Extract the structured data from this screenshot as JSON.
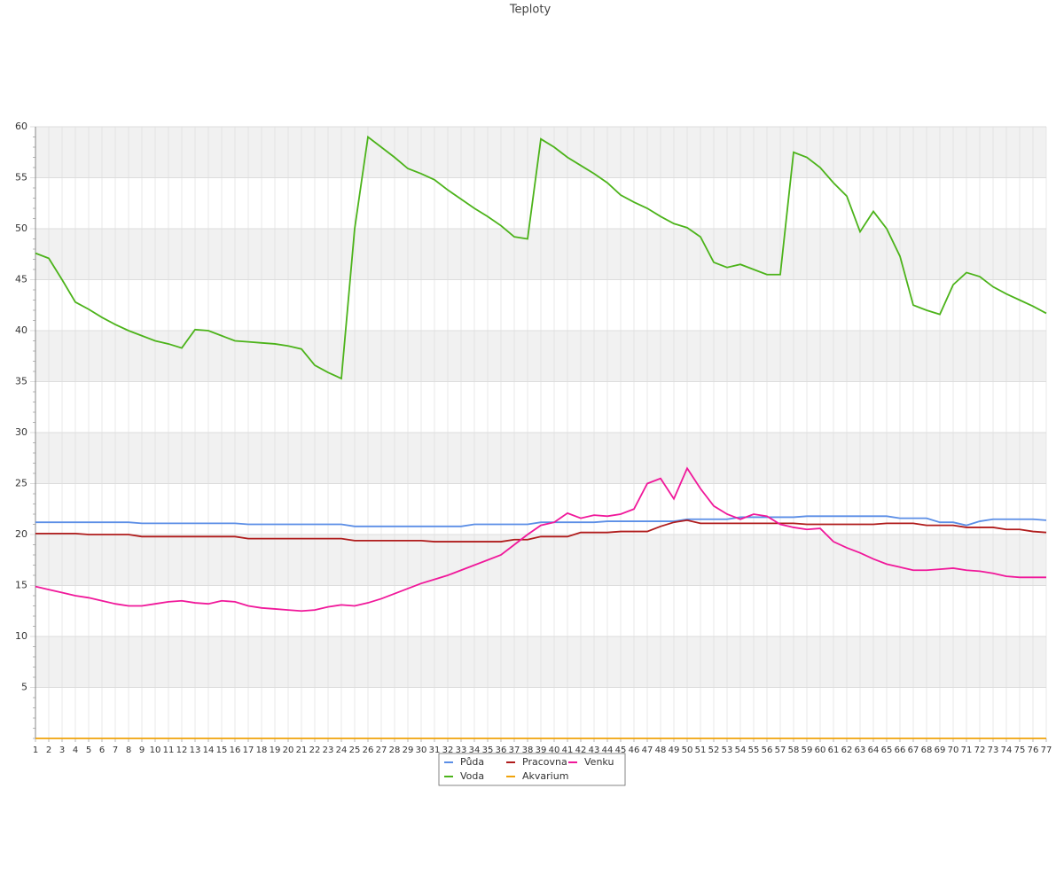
{
  "chart_data": {
    "type": "line",
    "title": "Teploty",
    "categories": [
      "1",
      "2",
      "3",
      "4",
      "5",
      "6",
      "7",
      "8",
      "9",
      "10",
      "11",
      "12",
      "13",
      "14",
      "15",
      "16",
      "17",
      "18",
      "19",
      "20",
      "21",
      "22",
      "23",
      "24",
      "25",
      "26",
      "27",
      "28",
      "29",
      "30",
      "31",
      "32",
      "33",
      "34",
      "35",
      "36",
      "37",
      "38",
      "39",
      "40",
      "41",
      "42",
      "43",
      "44",
      "45",
      "46",
      "47",
      "48",
      "49",
      "50",
      "51",
      "52",
      "53",
      "54",
      "55",
      "56",
      "57",
      "58",
      "59",
      "60",
      "61",
      "62",
      "63",
      "64",
      "65",
      "66",
      "67",
      "68",
      "69",
      "70",
      "71",
      "72",
      "73",
      "74",
      "75",
      "76",
      "77"
    ],
    "series": [
      {
        "name": "Půda",
        "color": "#5b8ee6",
        "values": [
          21.2,
          21.2,
          21.2,
          21.2,
          21.2,
          21.2,
          21.2,
          21.2,
          21.1,
          21.1,
          21.1,
          21.1,
          21.1,
          21.1,
          21.1,
          21.1,
          21.0,
          21.0,
          21.0,
          21.0,
          21.0,
          21.0,
          21.0,
          21.0,
          20.8,
          20.8,
          20.8,
          20.8,
          20.8,
          20.8,
          20.8,
          20.8,
          20.8,
          21.0,
          21.0,
          21.0,
          21.0,
          21.0,
          21.2,
          21.2,
          21.2,
          21.2,
          21.2,
          21.3,
          21.3,
          21.3,
          21.3,
          21.3,
          21.3,
          21.5,
          21.5,
          21.5,
          21.5,
          21.7,
          21.7,
          21.7,
          21.7,
          21.7,
          21.8,
          21.8,
          21.8,
          21.8,
          21.8,
          21.8,
          21.8,
          21.6,
          21.6,
          21.6,
          21.2,
          21.2,
          20.9,
          21.3,
          21.5,
          21.5,
          21.5,
          21.5,
          21.4
        ]
      },
      {
        "name": "Voda",
        "color": "#4cb31a",
        "values": [
          47.6,
          47.1,
          45,
          42.8,
          42.1,
          41.3,
          40.6,
          40,
          39.5,
          39,
          38.7,
          38.3,
          40.1,
          40,
          39.5,
          39,
          38.9,
          38.8,
          38.7,
          38.5,
          38.2,
          36.6,
          35.9,
          35.3,
          50,
          59,
          58,
          57,
          55.9,
          55.4,
          54.8,
          53.8,
          52.9,
          52,
          51.2,
          50.3,
          49.2,
          49,
          58.8,
          58,
          57,
          56.2,
          55.4,
          54.5,
          53.3,
          52.6,
          52,
          51.2,
          50.5,
          50.1,
          49.2,
          46.7,
          46.2,
          46.5,
          46,
          45.5,
          45.5,
          57.5,
          57,
          56,
          54.5,
          53.2,
          49.7,
          51.7,
          50,
          47.3,
          42.5,
          42,
          41.6,
          44.5,
          45.7,
          45.3,
          44.3,
          43.6,
          43,
          42.4,
          41.7
        ]
      },
      {
        "name": "Pracovna",
        "color": "#b01c1c",
        "values": [
          20.1,
          20.1,
          20.1,
          20.1,
          20.0,
          20.0,
          20.0,
          20.0,
          19.8,
          19.8,
          19.8,
          19.8,
          19.8,
          19.8,
          19.8,
          19.8,
          19.6,
          19.6,
          19.6,
          19.6,
          19.6,
          19.6,
          19.6,
          19.6,
          19.4,
          19.4,
          19.4,
          19.4,
          19.4,
          19.4,
          19.3,
          19.3,
          19.3,
          19.3,
          19.3,
          19.3,
          19.5,
          19.5,
          19.8,
          19.8,
          19.8,
          20.2,
          20.2,
          20.2,
          20.3,
          20.3,
          20.3,
          20.8,
          21.2,
          21.4,
          21.1,
          21.1,
          21.1,
          21.1,
          21.1,
          21.1,
          21.1,
          21.1,
          21.0,
          21.0,
          21.0,
          21.0,
          21.0,
          21.0,
          21.1,
          21.1,
          21.1,
          20.9,
          20.9,
          20.9,
          20.7,
          20.7,
          20.7,
          20.5,
          20.5,
          20.3,
          20.2
        ]
      },
      {
        "name": "Akvarium",
        "color": "#f0a30a",
        "values": [
          0,
          0,
          0,
          0,
          0,
          0,
          0,
          0,
          0,
          0,
          0,
          0,
          0,
          0,
          0,
          0,
          0,
          0,
          0,
          0,
          0,
          0,
          0,
          0,
          0,
          0,
          0,
          0,
          0,
          0,
          0,
          0,
          0,
          0,
          0,
          0,
          0,
          0,
          0,
          0,
          0,
          0,
          0,
          0,
          0,
          0,
          0,
          0,
          0,
          0,
          0,
          0,
          0,
          0,
          0,
          0,
          0,
          0,
          0,
          0,
          0,
          0,
          0,
          0,
          0,
          0,
          0,
          0,
          0,
          0,
          0,
          0,
          0,
          0,
          0,
          0,
          0
        ]
      },
      {
        "name": "Venku",
        "color": "#f0189a",
        "values": [
          14.9,
          14.6,
          14.3,
          14,
          13.8,
          13.5,
          13.2,
          13,
          13,
          13.2,
          13.4,
          13.5,
          13.3,
          13.2,
          13.5,
          13.4,
          13,
          12.8,
          12.7,
          12.6,
          12.5,
          12.6,
          12.9,
          13.1,
          13,
          13.3,
          13.7,
          14.2,
          14.7,
          15.2,
          15.6,
          16,
          16.5,
          17,
          17.5,
          18,
          19,
          20,
          20.9,
          21.2,
          22.1,
          21.6,
          21.9,
          21.8,
          22,
          22.5,
          25,
          25.5,
          23.5,
          26.5,
          24.5,
          22.8,
          22,
          21.5,
          22,
          21.8,
          21,
          20.7,
          20.5,
          20.6,
          19.3,
          18.7,
          18.2,
          17.6,
          17.1,
          16.8,
          16.5,
          16.5,
          16.6,
          16.7,
          16.5,
          16.4,
          16.2,
          15.9,
          15.8,
          15.8,
          15.8
        ]
      }
    ],
    "ylim": [
      0,
      60
    ],
    "yticks": [
      5,
      10,
      15,
      20,
      25,
      30,
      35,
      40,
      45,
      50,
      55,
      60
    ],
    "grid": true,
    "legend": "bottom"
  }
}
